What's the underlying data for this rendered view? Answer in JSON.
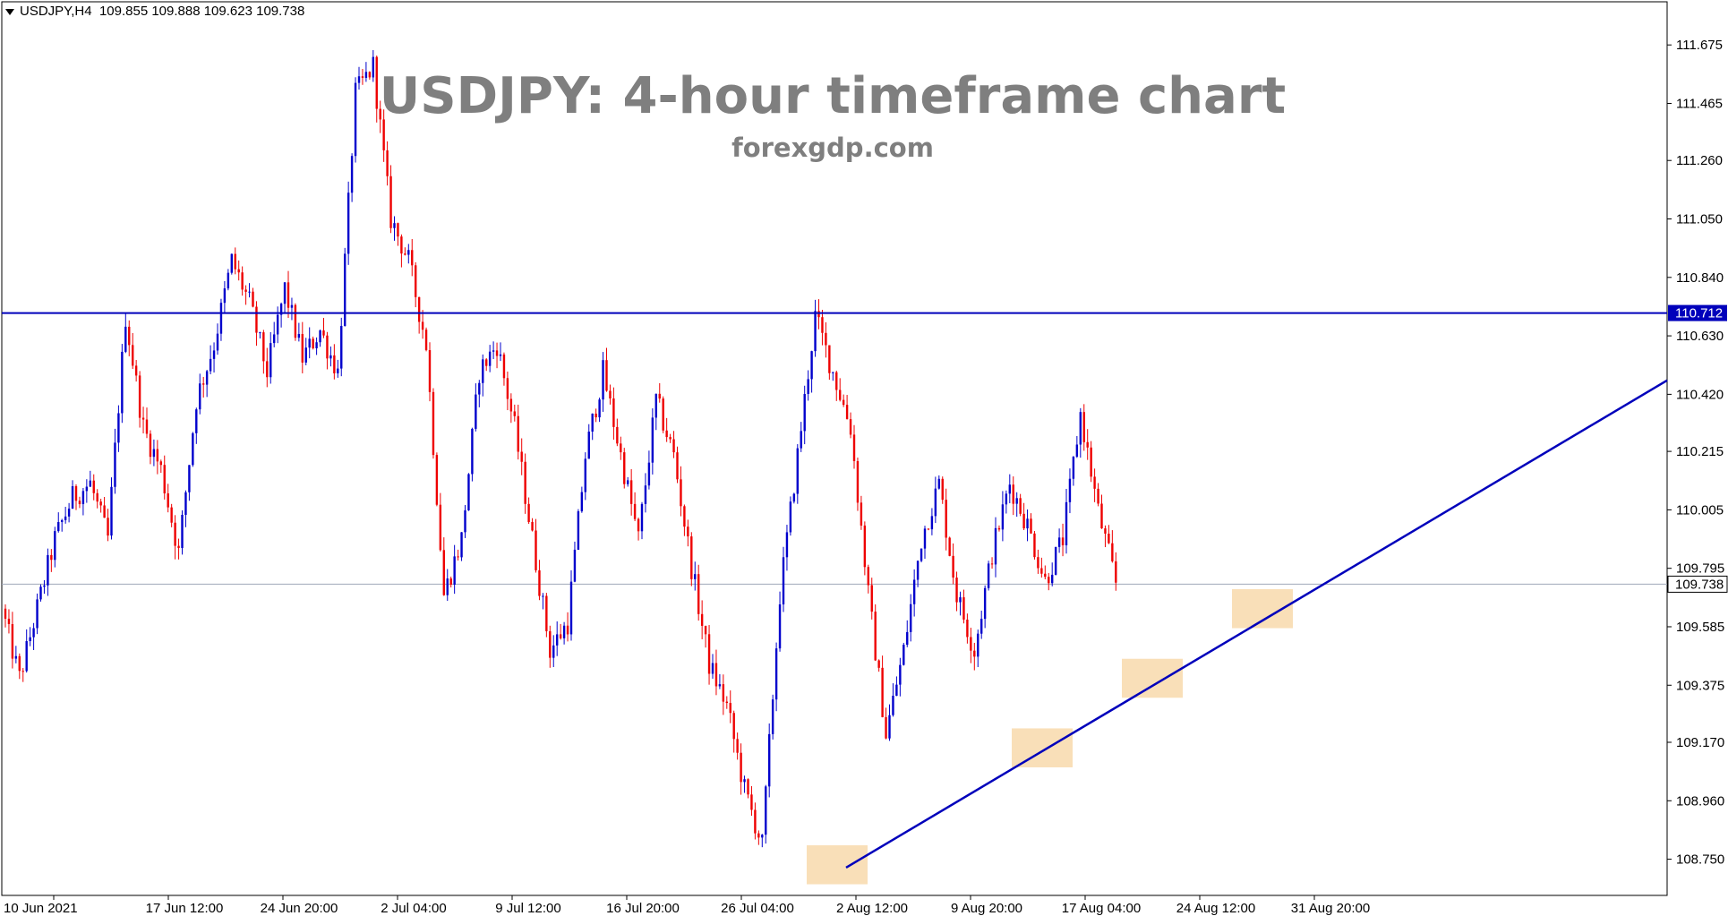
{
  "header": {
    "symbol": "USDJPY,H4",
    "ohlc": "109.855 109.888 109.623 109.738"
  },
  "title": "USDJPY: 4-hour timeframe chart",
  "subtitle": "forexgdp.com",
  "colors": {
    "up_candle": "#0000cc",
    "down_candle": "#ee0000",
    "trendline": "#0000bb",
    "resistance": "#0000bb",
    "current_price_line": "#a0a8b8",
    "support_highlight": "#f8d9ac"
  },
  "chart_data": {
    "type": "candlestick",
    "instrument": "USDJPY",
    "timeframe": "H4",
    "x_ticks": [
      "10 Jun 2021",
      "17 Jun 12:00",
      "24 Jun 20:00",
      "2 Jul 04:00",
      "9 Jul 12:00",
      "16 Jul 20:00",
      "26 Jul 04:00",
      "2 Aug 12:00",
      "9 Aug 20:00",
      "17 Aug 04:00",
      "24 Aug 12:00",
      "31 Aug 20:00"
    ],
    "y_ticks": [
      111.675,
      111.465,
      111.26,
      111.05,
      110.84,
      110.63,
      110.42,
      110.215,
      110.005,
      109.795,
      109.585,
      109.375,
      109.17,
      108.96,
      108.75
    ],
    "ylim": [
      108.62,
      111.83
    ],
    "resistance_level": 110.712,
    "current_price": 109.738,
    "current_price_label": "109.738",
    "resistance_label": "110.712",
    "trendline": [
      {
        "x": "2 Aug 12:00",
        "y": 108.72
      },
      {
        "x": "31 Aug 20:00",
        "y": 109.76
      },
      {
        "x": "extended",
        "y": 110.47
      }
    ],
    "support_zones": [
      {
        "near": "2 Aug 12:00",
        "low": 108.66,
        "high": 108.8
      },
      {
        "near": "16 Aug",
        "low": 109.08,
        "high": 109.22
      },
      {
        "near": "24 Aug 12:00",
        "low": 109.33,
        "high": 109.47
      },
      {
        "near": "31 Aug 08:00",
        "low": 109.58,
        "high": 109.72
      }
    ],
    "price_path": [
      109.65,
      109.4,
      109.65,
      109.9,
      110.05,
      110.1,
      109.9,
      110.7,
      110.3,
      110.15,
      109.85,
      110.4,
      110.6,
      110.9,
      110.75,
      110.5,
      110.8,
      110.55,
      110.65,
      110.5,
      111.5,
      111.6,
      111.05,
      110.9,
      110.6,
      109.7,
      109.9,
      110.5,
      110.6,
      110.3,
      109.9,
      109.5,
      109.6,
      110.2,
      110.5,
      110.2,
      109.9,
      110.4,
      110.2,
      109.8,
      109.45,
      109.3,
      109.0,
      108.8,
      109.7,
      110.2,
      110.7,
      110.5,
      110.3,
      109.7,
      109.2,
      109.5,
      109.9,
      110.1,
      109.7,
      109.5,
      109.85,
      110.1,
      109.95,
      109.75,
      109.9,
      110.35,
      110.0,
      109.74
    ]
  }
}
